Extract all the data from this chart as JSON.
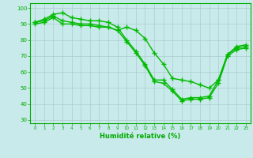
{
  "title": "",
  "xlabel": "Humidité relative (%)",
  "ylabel": "",
  "bg_color": "#c8eaea",
  "grid_color": "#aacccc",
  "line_color": "#00bb00",
  "marker": "+",
  "markersize": 4,
  "linewidth": 1.0,
  "xlim": [
    -0.5,
    23.5
  ],
  "ylim": [
    28,
    103
  ],
  "yticks": [
    30,
    40,
    50,
    60,
    70,
    80,
    90,
    100
  ],
  "xticks": [
    0,
    1,
    2,
    3,
    4,
    5,
    6,
    7,
    8,
    9,
    10,
    11,
    12,
    13,
    14,
    15,
    16,
    17,
    18,
    19,
    20,
    21,
    22,
    23
  ],
  "series": [
    [
      91,
      93,
      96,
      97,
      94,
      93,
      92,
      92,
      91,
      88,
      80,
      73,
      65,
      55,
      55,
      49,
      43,
      44,
      44,
      45,
      55,
      71,
      75,
      76
    ],
    [
      91,
      92,
      95,
      92,
      91,
      90,
      90,
      89,
      88,
      86,
      79,
      72,
      64,
      54,
      53,
      48,
      42,
      43,
      43,
      44,
      53,
      70,
      74,
      75
    ],
    [
      90,
      91,
      94,
      90,
      90,
      89,
      89,
      88,
      88,
      86,
      88,
      86,
      81,
      72,
      65,
      56,
      55,
      54,
      52,
      50,
      55,
      71,
      76,
      77
    ]
  ]
}
